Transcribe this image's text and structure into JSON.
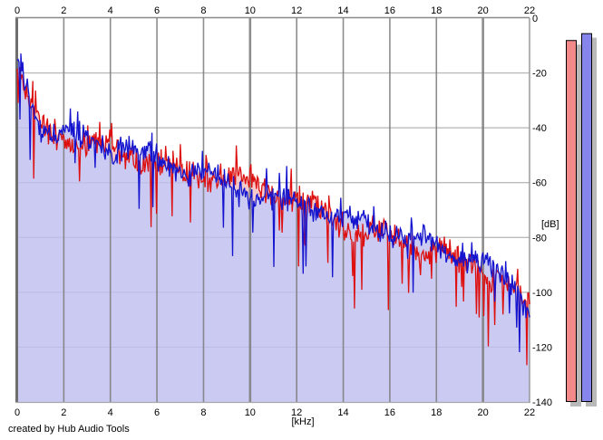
{
  "footer": {
    "text": "created by Hub Audio Tools"
  },
  "chart_data": {
    "type": "area",
    "title": "",
    "xlabel": "[kHz]",
    "ylabel": "[dB]",
    "xlim": [
      0,
      22
    ],
    "ylim": [
      -140,
      0
    ],
    "x_ticks": [
      0,
      2,
      4,
      6,
      8,
      10,
      12,
      14,
      16,
      18,
      20,
      22
    ],
    "y_ticks": [
      0,
      -20,
      -40,
      -60,
      -80,
      -100,
      -120,
      -140
    ],
    "grid": true,
    "legend": "none",
    "series": [
      {
        "name": "left-channel-spectrum",
        "line_color": "#dd0f0f",
        "fill_color": "#f6caca",
        "envelope_db_at_khz": [
          -18,
          -41,
          -44,
          -46,
          -47,
          -51,
          -53,
          -56,
          -58,
          -58,
          -60,
          -63,
          -66,
          -71,
          -75,
          -78,
          -80,
          -83,
          -85,
          -88,
          -91,
          -96,
          -106
        ]
      },
      {
        "name": "right-channel-spectrum",
        "line_color": "#1414cf",
        "fill_color": "#cacaf3",
        "envelope_db_at_khz": [
          -13,
          -40,
          -43,
          -45,
          -46,
          -49,
          -51,
          -54,
          -57,
          -61,
          -63,
          -66,
          -68,
          -70,
          -73,
          -75,
          -77,
          -81,
          -84,
          -86,
          -90,
          -95,
          -104
        ]
      }
    ],
    "noise_model": {
      "points": 560,
      "jitter_db": 5.5,
      "dip_db": 24,
      "dip_prob": 0.055,
      "peak_db": 7,
      "peak_prob": 0.05,
      "seeds": [
        13,
        29
      ]
    },
    "meters": [
      {
        "name": "left-level",
        "value_db": -8.0,
        "fill": "#f28a8a",
        "border": "#000000"
      },
      {
        "name": "right-level",
        "value_db": -5.5,
        "fill": "#8585ec",
        "border": "#000000"
      }
    ],
    "colors": {
      "plot_bg": "#ffffff",
      "h_grid": "#c6c6c6",
      "v_grid": "#7d7d7d",
      "border_dark": "#6f6f6f",
      "border_top": "#8a8a8a",
      "border_light": "#bdbdbd",
      "border_bottom": "#a8a8a8",
      "meter_shadow": "#b9b9b9",
      "text": "#000000"
    }
  }
}
